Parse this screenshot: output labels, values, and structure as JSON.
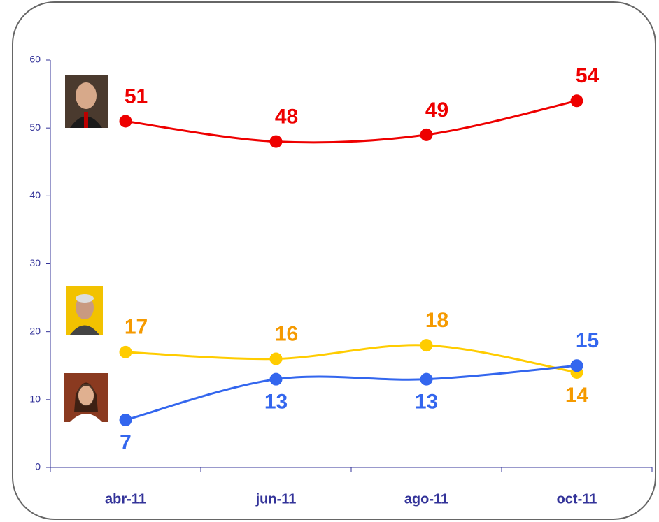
{
  "chart_data": {
    "type": "line",
    "categories": [
      "abr-11",
      "jun-11",
      "ago-11",
      "oct-11"
    ],
    "series": [
      {
        "color": "#ee0000",
        "label_color": "#ee0000",
        "values": [
          51,
          48,
          49,
          54
        ]
      },
      {
        "color": "#ffcc00",
        "label_color": "#f59a00",
        "values": [
          17,
          16,
          18,
          14
        ]
      },
      {
        "color": "#3366ee",
        "label_color": "#3366ee",
        "values": [
          7,
          13,
          13,
          15
        ]
      }
    ],
    "ylim": [
      0,
      60
    ],
    "yticks": [
      0,
      10,
      20,
      30,
      40,
      50,
      60
    ],
    "smooth": true
  }
}
